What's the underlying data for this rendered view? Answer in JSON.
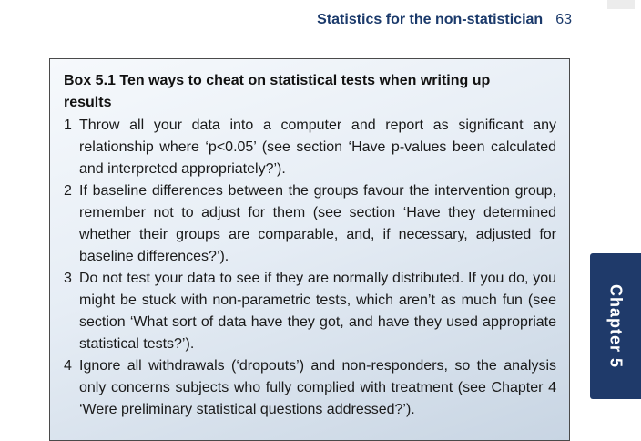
{
  "header": {
    "title": "Statistics for the non-statistician",
    "page_number": "63"
  },
  "box": {
    "title": "Box 5.1 Ten ways to cheat on statistical tests when writing up results",
    "items": [
      {
        "num": "1",
        "text": "Throw all your data into a computer and report as significant any relationship where ‘p<0.05’ (see section ‘Have p-values been calculated and interpreted appropriately?’)."
      },
      {
        "num": "2",
        "text": "If baseline differences between the groups favour the intervention group, remember not to adjust for them (see section ‘Have they determined whether their groups are comparable, and, if necessary, adjusted for baseline differences?’)."
      },
      {
        "num": "3",
        "text": "Do not test your data to see if they are normally distributed. If you do, you might be stuck with non-parametric tests, which aren’t as much fun (see section ‘What sort of data have they got, and have they used appropriate statistical tests?’)."
      },
      {
        "num": "4",
        "text": "Ignore all withdrawals (‘dropouts’) and non-responders, so the analysis only concerns subjects who fully complied with treatment (see Chapter 4 ‘Were preliminary statistical questions addressed?’)."
      }
    ]
  },
  "side_tab": {
    "label": "Chapter 5"
  }
}
